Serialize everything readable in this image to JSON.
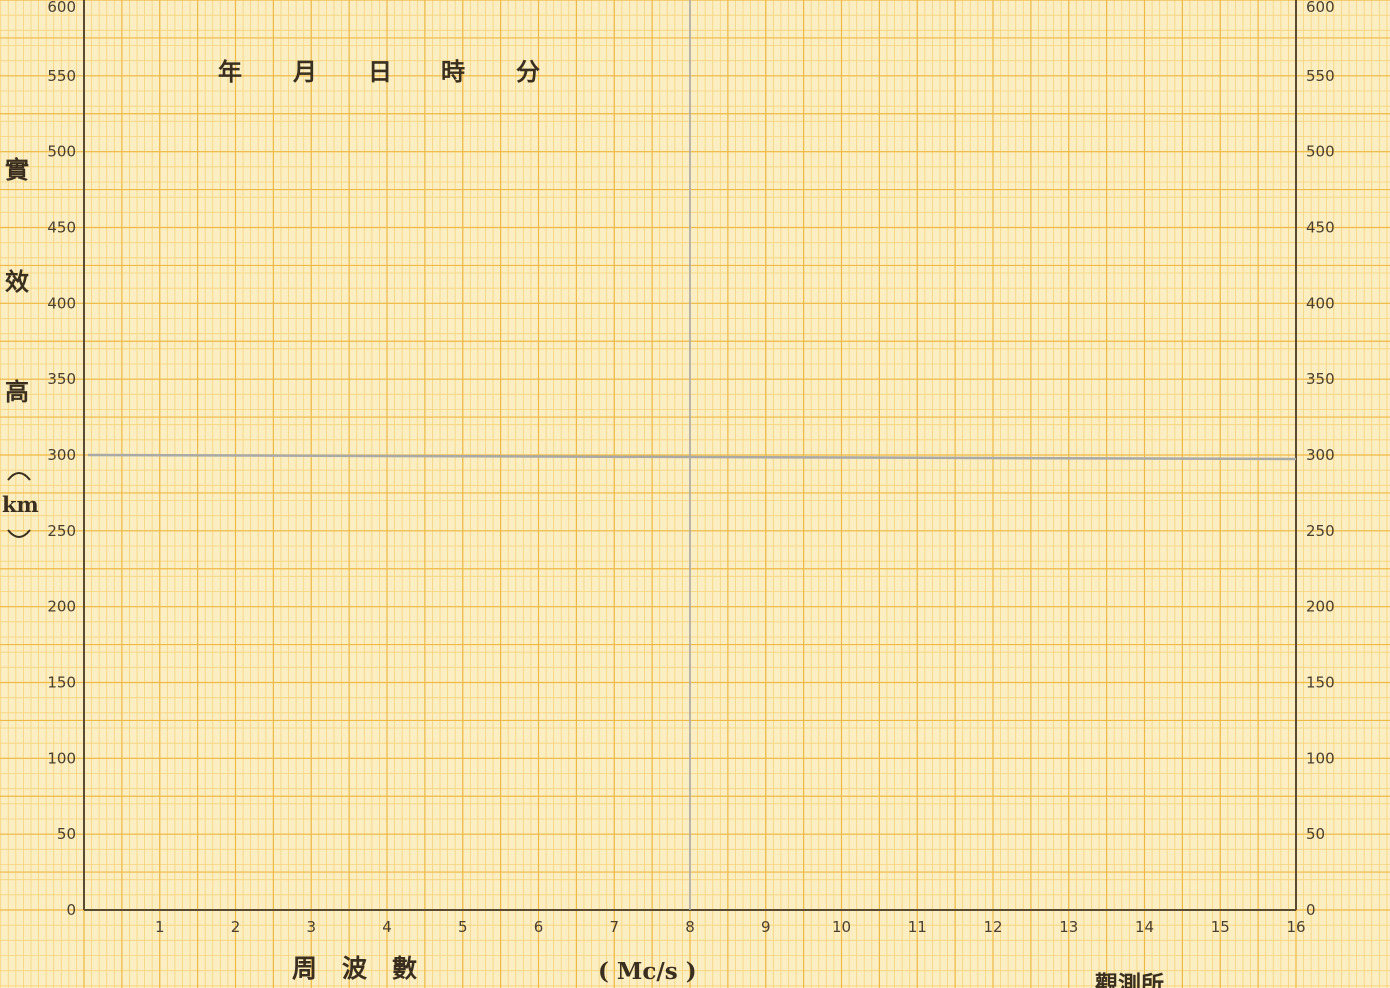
{
  "chart_data": {
    "type": "line",
    "title": "",
    "header": {
      "year_label": "年",
      "month_label": "月",
      "day_label": "日",
      "hour_label": "時",
      "minute_label": "分"
    },
    "xlabel": "周　波　數",
    "xunit": "( Mc/s )",
    "ylabel_chars": [
      "實",
      "效",
      "高"
    ],
    "yunit": "km",
    "station_label": "觀測所",
    "xlim": [
      0,
      16
    ],
    "ylim": [
      0,
      600
    ],
    "x_ticks": [
      "1",
      "2",
      "3",
      "4",
      "5",
      "6",
      "7",
      "8",
      "9",
      "10",
      "11",
      "12",
      "13",
      "14",
      "15",
      "16"
    ],
    "y_ticks_left": [
      "0",
      "50",
      "100",
      "150",
      "200",
      "250",
      "300",
      "350",
      "400",
      "450",
      "500",
      "550",
      "600"
    ],
    "y_ticks_right": [
      "0",
      "50",
      "100",
      "150",
      "200",
      "250",
      "300",
      "350",
      "400",
      "450",
      "500",
      "550",
      "600"
    ],
    "reference_line": {
      "y": 300
    },
    "series": [],
    "grid": true
  },
  "colors": {
    "paper": "#fbeec3",
    "grid_minor": "#f5cf6e",
    "grid_major": "#eeb945",
    "axis": "#5a4a30",
    "reference_line": "#a9a9a6"
  }
}
